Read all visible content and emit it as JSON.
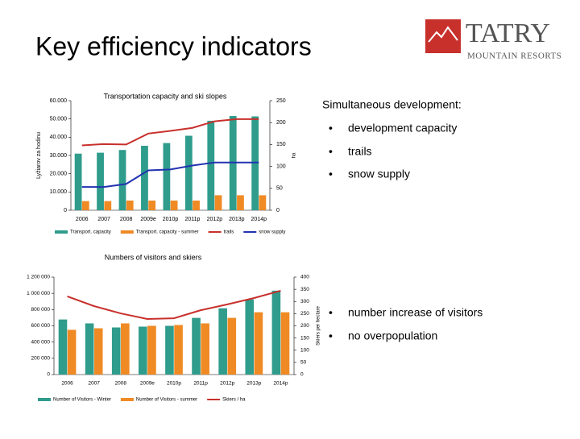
{
  "slide_title": "Key efficiency indicators",
  "logo": {
    "name": "TATRY",
    "subtitle": "MOUNTAIN RESORTS"
  },
  "bullets_top": {
    "heading": "Simultaneous development:",
    "items": [
      "development capacity",
      "trails",
      "snow supply"
    ]
  },
  "bullets_bottom": {
    "items": [
      "number increase of visitors",
      "no overpopulation"
    ]
  },
  "chart_data": [
    {
      "type": "combo",
      "title": "Transportation capacity and ski slopes",
      "ylabel": "Lyžiarov za hodinu",
      "y2label": "ha",
      "categories": [
        "2006",
        "2007",
        "2008",
        "2009e",
        "2010p",
        "2011p",
        "2012p",
        "2013p",
        "2014p"
      ],
      "ylim": [
        0,
        60000
      ],
      "yticks": [
        0,
        {
          "value": 10000,
          "label": "10.000"
        },
        {
          "value": 20000,
          "label": "20.000"
        },
        {
          "value": 30000,
          "label": "30.000"
        },
        {
          "value": 40000,
          "label": "40.000"
        },
        {
          "value": 50000,
          "label": "50.000"
        },
        {
          "value": 60000,
          "label": "60.000"
        }
      ],
      "y2lim": [
        0,
        250
      ],
      "y2ticks": [
        0,
        50,
        100,
        150,
        200,
        250
      ],
      "series": [
        {
          "name": "Transport. capacity",
          "type": "bar",
          "color": "#2f9c8c",
          "values": [
            31000,
            31500,
            33000,
            35300,
            36800,
            40800,
            49000,
            51600,
            51400
          ]
        },
        {
          "name": "Transport. capacity - summer",
          "type": "bar",
          "color": "#f08a24",
          "values": [
            5000,
            5000,
            5300,
            5300,
            5300,
            5300,
            8200,
            8200,
            8200
          ]
        },
        {
          "name": "trails",
          "type": "line",
          "axis": "y2",
          "color": "#c8302c",
          "values": [
            148,
            151,
            150,
            175,
            181,
            188,
            203,
            208,
            208
          ]
        },
        {
          "name": "snow supply",
          "type": "line",
          "axis": "y2",
          "color": "#2233b0",
          "values": [
            53,
            53,
            60,
            91,
            93,
            102,
            109,
            109,
            109
          ]
        }
      ]
    },
    {
      "type": "combo",
      "title": "Numbers of visitors and skiers",
      "y2label": "Skiers per hectare",
      "categories": [
        "2006",
        "2007",
        "2008",
        "2009e",
        "2010p",
        "2011p",
        "2012p",
        "2013p",
        "2014p"
      ],
      "ylim": [
        0,
        1200000
      ],
      "yticks": [
        0,
        {
          "value": 200000,
          "label": "200 000"
        },
        {
          "value": 400000,
          "label": "400 000"
        },
        {
          "value": 600000,
          "label": "600 000"
        },
        {
          "value": 800000,
          "label": "800 000"
        },
        {
          "value": 1000000,
          "label": "1 000 000"
        },
        {
          "value": 1200000,
          "label": "1 200 000"
        }
      ],
      "y2lim": [
        0,
        400
      ],
      "y2ticks": [
        0,
        50,
        100,
        150,
        200,
        250,
        300,
        350,
        400
      ],
      "series": [
        {
          "name": "Number of Visitors - Winter",
          "type": "bar",
          "color": "#2f9c8c",
          "values": [
            678000,
            630000,
            580000,
            590000,
            600000,
            698000,
            816000,
            925000,
            1033000
          ]
        },
        {
          "name": "Number of Visitors - summer",
          "type": "bar",
          "color": "#f08a24",
          "values": [
            551000,
            570000,
            630000,
            600000,
            610000,
            630000,
            698000,
            767000,
            767000
          ]
        },
        {
          "name": "Skiers / ha",
          "type": "line",
          "axis": "y2",
          "color": "#c8302c",
          "values": [
            321,
            281,
            251,
            228,
            231,
            264,
            288,
            314,
            344
          ]
        }
      ]
    }
  ]
}
